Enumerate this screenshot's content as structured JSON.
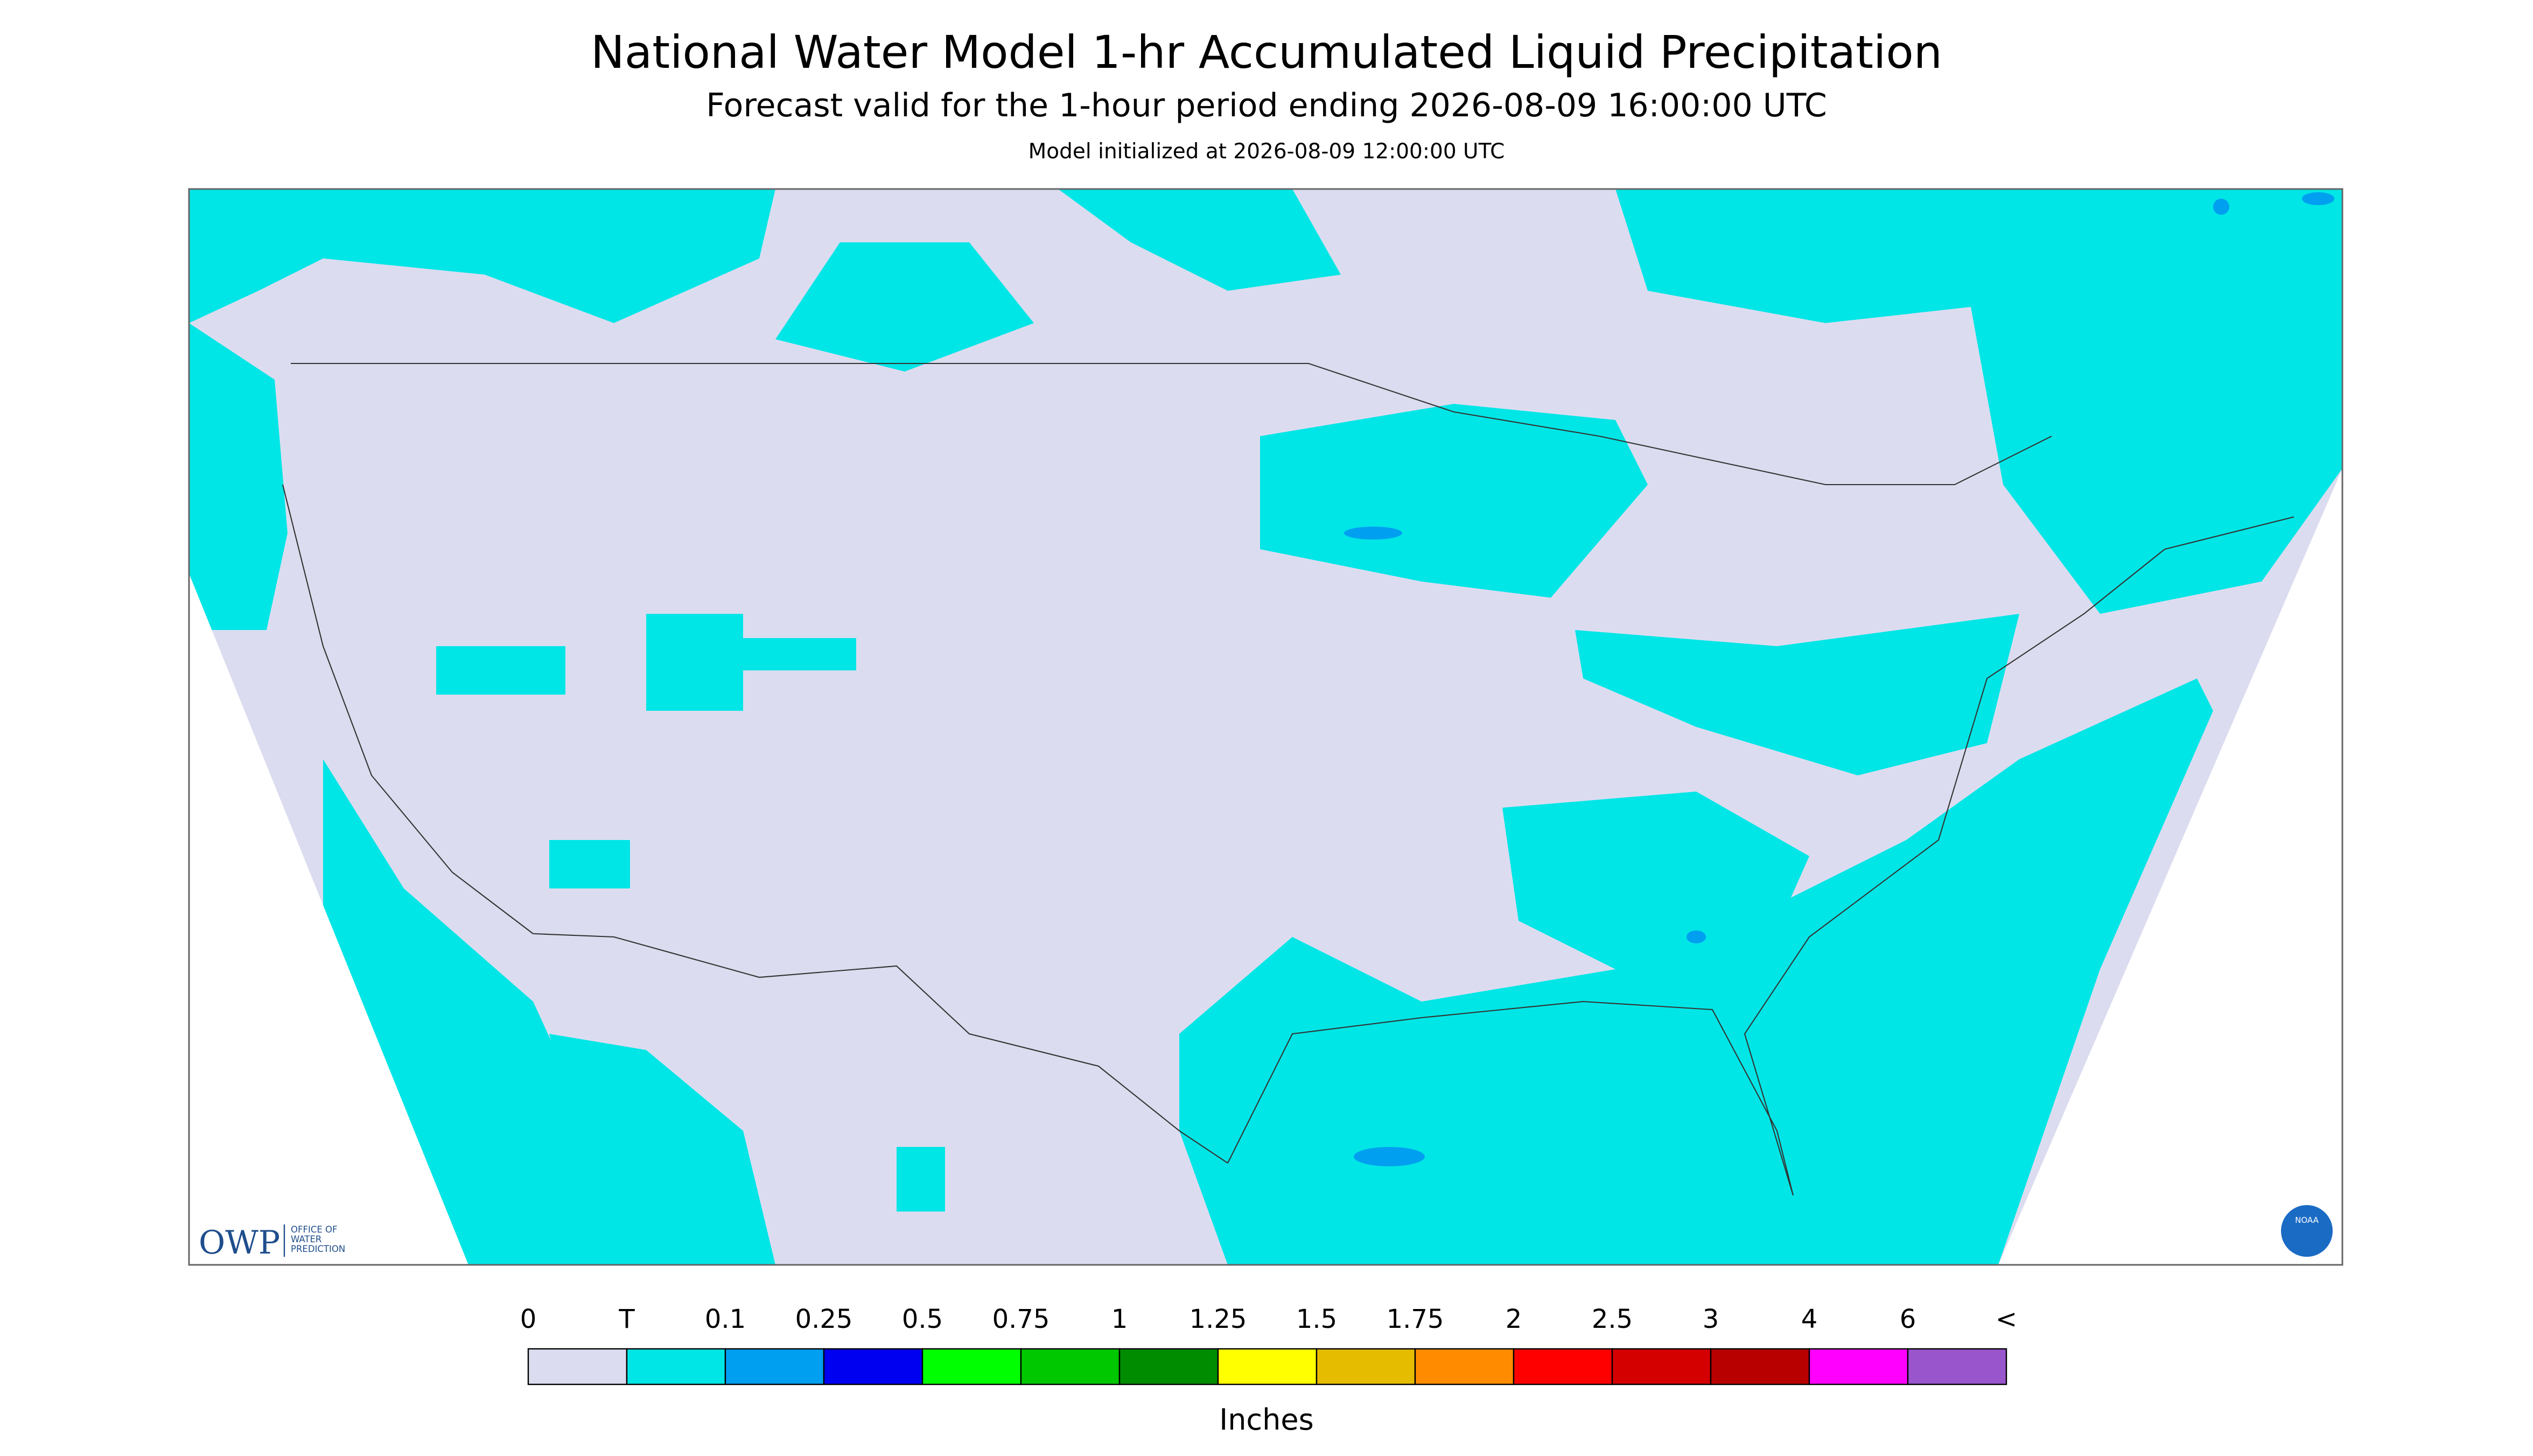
{
  "header": {
    "title": "National Water Model 1-hr Accumulated Liquid Precipitation",
    "subtitle": "Forecast valid for the 1-hour period ending 2026-08-09 16:00:00 UTC",
    "init": "Model initialized at 2026-08-09 12:00:00 UTC"
  },
  "legend": {
    "labels": [
      "0",
      "T",
      "0.1",
      "0.25",
      "0.5",
      "0.75",
      "1",
      "1.25",
      "1.5",
      "1.75",
      "2",
      "2.5",
      "3",
      "4",
      "6",
      "<"
    ],
    "colors": [
      "#dcdcf0",
      "#00e6e6",
      "#009ff0",
      "#0000f0",
      "#00ff00",
      "#00c800",
      "#008c00",
      "#ffff00",
      "#e6bc00",
      "#ff8c00",
      "#ff0000",
      "#d40000",
      "#b80000",
      "#ff00ff",
      "#9955cc"
    ],
    "unit": "Inches"
  },
  "logos": {
    "owp": "OWP",
    "owp_text": [
      "OFFICE OF",
      "WATER",
      "PREDICTION"
    ],
    "noaa": "NOAA"
  }
}
